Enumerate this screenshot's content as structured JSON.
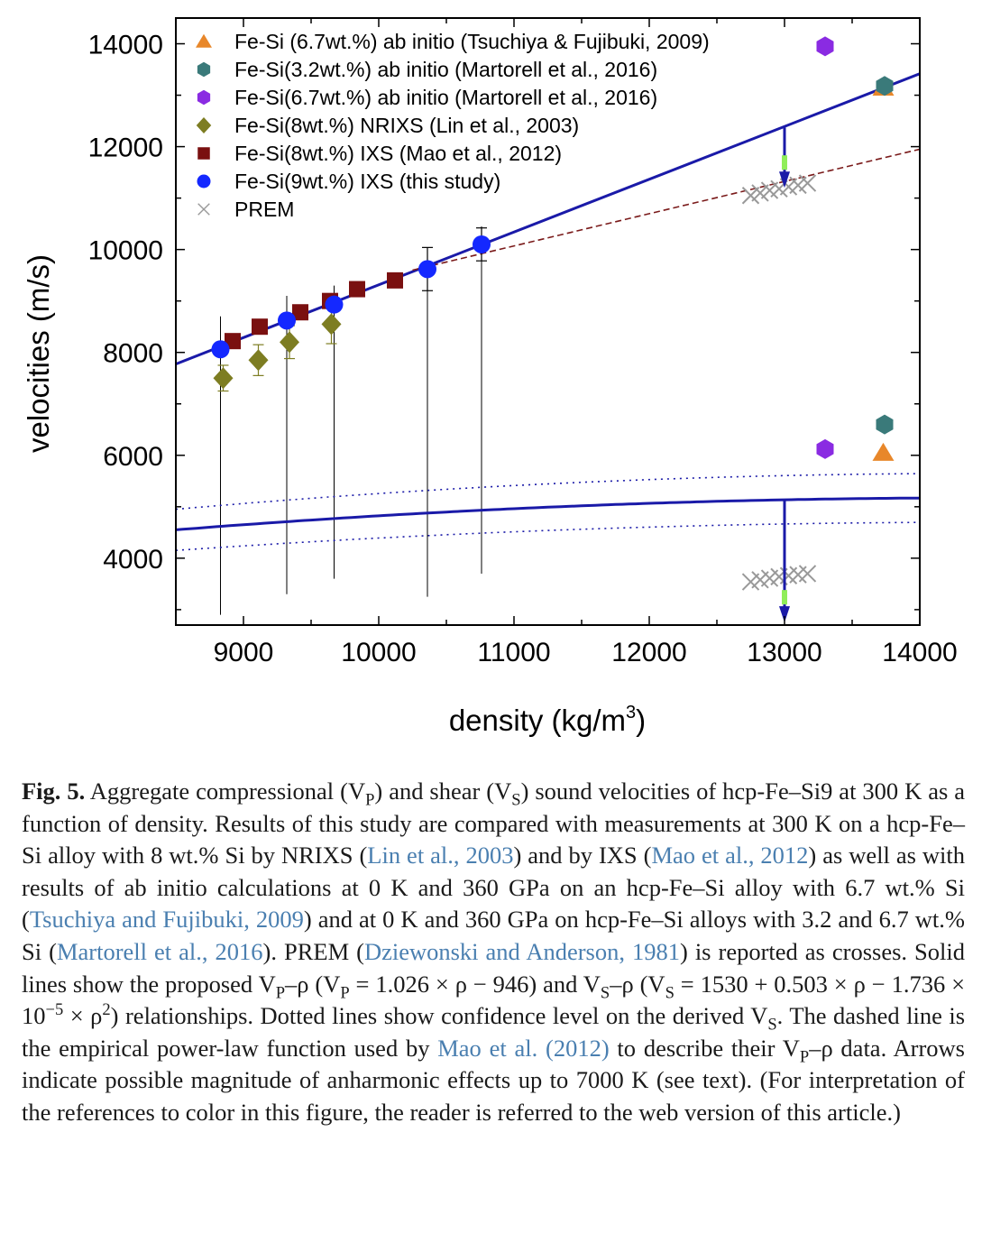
{
  "chart_data": {
    "type": "scatter",
    "xlabel": "density (kg/m",
    "xlabel_sup": "3",
    "xlabel_end": ")",
    "ylabel": "velocities (m/s)",
    "xlim": [
      8500,
      14000
    ],
    "ylim": [
      2700,
      14500
    ],
    "xticks": [
      9000,
      10000,
      11000,
      12000,
      13000,
      14000
    ],
    "yticks": [
      4000,
      6000,
      8000,
      10000,
      12000,
      14000
    ],
    "legend_placement": "top-left",
    "colors": {
      "tsuchiya": "#e8872a",
      "martorell32": "#3a7a7a",
      "martorell67": "#8a2be2",
      "lin": "#7d7d22",
      "mao": "#7a1010",
      "this": "#1428ff",
      "prem": "#999999",
      "fit": "#1a1aa8",
      "dashed": "#7a1a1a",
      "arrow_fill": "#90ee5a"
    },
    "series": [
      {
        "key": "tsuchiya",
        "name": "Fe-Si (6.7wt.%) ab initio (Tsuchiya & Fujibuki, 2009)",
        "marker": "triangle",
        "points": [
          {
            "x": 13730,
            "y": 13150
          },
          {
            "x": 13730,
            "y": 6050
          }
        ]
      },
      {
        "key": "martorell32",
        "name": "Fe-Si(3.2wt.%) ab initio (Martorell et al., 2016)",
        "marker": "hexagon",
        "points": [
          {
            "x": 13740,
            "y": 13180
          },
          {
            "x": 13740,
            "y": 6600
          }
        ]
      },
      {
        "key": "martorell67",
        "name": "Fe-Si(6.7wt.%) ab initio (Martorell et al., 2016)",
        "marker": "hexagon",
        "points": [
          {
            "x": 13300,
            "y": 13950
          },
          {
            "x": 13300,
            "y": 6120
          }
        ]
      },
      {
        "key": "lin",
        "name": "Fe-Si(8wt.%) NRIXS (Lin et al., 2003)",
        "marker": "diamond",
        "points": [
          {
            "x": 8850,
            "y": 7500,
            "err": 250
          },
          {
            "x": 9110,
            "y": 7850,
            "err": 300
          },
          {
            "x": 9340,
            "y": 8200,
            "err": 320
          },
          {
            "x": 9650,
            "y": 8550,
            "err": 380
          }
        ]
      },
      {
        "key": "mao",
        "name": "Fe-Si(8wt.%) IXS (Mao et al., 2012)",
        "marker": "square",
        "points": [
          {
            "x": 8920,
            "y": 8220
          },
          {
            "x": 9120,
            "y": 8500
          },
          {
            "x": 9420,
            "y": 8780
          },
          {
            "x": 9640,
            "y": 9000
          },
          {
            "x": 9840,
            "y": 9230
          },
          {
            "x": 10120,
            "y": 9400
          }
        ]
      },
      {
        "key": "this",
        "name": "Fe-Si(9wt.%) IXS (this study)",
        "marker": "circle",
        "points": [
          {
            "x": 8830,
            "y": 8060
          },
          {
            "x": 9320,
            "y": 8620
          },
          {
            "x": 9670,
            "y": 8930
          },
          {
            "x": 10360,
            "y": 9620,
            "err": 420
          },
          {
            "x": 10760,
            "y": 10100,
            "err": 320
          }
        ]
      },
      {
        "key": "prem",
        "name": "PREM",
        "marker": "cross",
        "points": [
          {
            "x": 12750,
            "y": 11050
          },
          {
            "x": 12820,
            "y": 11100
          },
          {
            "x": 12890,
            "y": 11150
          },
          {
            "x": 12960,
            "y": 11180
          },
          {
            "x": 13030,
            "y": 11220
          },
          {
            "x": 13100,
            "y": 11250
          },
          {
            "x": 13170,
            "y": 11290
          },
          {
            "x": 12750,
            "y": 3540
          },
          {
            "x": 12820,
            "y": 3580
          },
          {
            "x": 12890,
            "y": 3610
          },
          {
            "x": 12960,
            "y": 3640
          },
          {
            "x": 13030,
            "y": 3660
          },
          {
            "x": 13100,
            "y": 3680
          },
          {
            "x": 13170,
            "y": 3700
          }
        ]
      }
    ],
    "vs_error_bars": [
      {
        "x": 8830,
        "low": 2900,
        "high": 8700
      },
      {
        "x": 9320,
        "low": 3300,
        "high": 9100
      },
      {
        "x": 9670,
        "low": 3600,
        "high": 9300
      },
      {
        "x": 10360,
        "low": 3250,
        "high": 10000
      },
      {
        "x": 10760,
        "low": 3700,
        "high": 10450
      }
    ],
    "vp_fit": {
      "slope": 1.026,
      "intercept": -946
    },
    "vs_fit": {
      "a": 1530,
      "b": 0.503,
      "c": -1.736e-05
    },
    "vs_confidence": [
      {
        "offset": 400,
        "slope_factor": 1.12
      },
      {
        "offset": -400,
        "slope_factor": 0.88
      }
    ],
    "dashed_powerlaw": {
      "x_start": 10250,
      "x_end": 14000,
      "y_start": 9600,
      "y_end": 11950
    },
    "arrows": [
      {
        "x": 13000,
        "y_from": 12370,
        "y_to": 11200
      },
      {
        "x": 13000,
        "y_from": 5150,
        "y_to": 2750
      }
    ]
  },
  "caption": {
    "label": "Fig. 5.",
    "t1": " Aggregate compressional (V",
    "p1": "P",
    "t2": ") and shear (V",
    "s1": "S",
    "t3": ") sound velocities of hcp-Fe–Si9 at 300 K as a function of density. Results of this study are compared with measurements at 300 K on a hcp-Fe–Si alloy with 8 wt.% Si by NRIXS (",
    "r1": "Lin et al., 2003",
    "t4": ") and by IXS (",
    "r2": "Mao et al., 2012",
    "t5": ") as well as with results of ab initio calculations at 0 K and 360 GPa on an hcp-Fe–Si alloy with 6.7 wt.% Si (",
    "r3": "Tsuchiya and Fujibuki, 2009",
    "t6": ") and at 0 K and 360 GPa on hcp-Fe–Si alloys with 3.2 and 6.7 wt.% Si (",
    "r4": "Martorell et al., 2016",
    "t7": "). PREM (",
    "r5": "Dziewonski and Anderson, 1981",
    "t8": ") is reported as crosses. Solid lines show the proposed V",
    "p2": "P",
    "t9": "–ρ (V",
    "p3": "P",
    "t10": " = 1.026 × ρ − 946) and V",
    "s2": "S",
    "t11": "–ρ (V",
    "s3": "S",
    "t12": " = 1530 + 0.503 × ρ − 1.736 × 10",
    "sup1": "−5",
    "t13": " × ρ",
    "sup2": "2",
    "t14": ") relationships. Dotted lines show confidence level on the derived V",
    "s4": "S",
    "t15": ". The dashed line is the empirical power-law function used by ",
    "r6": "Mao et al. (2012)",
    "t16": " to describe their V",
    "p4": "P",
    "t17": "–ρ data. Arrows indicate possible magnitude of anharmonic effects up to 7000 K (see text). (For interpretation of the references to color in this figure, the reader is referred to the web version of this article.)"
  }
}
